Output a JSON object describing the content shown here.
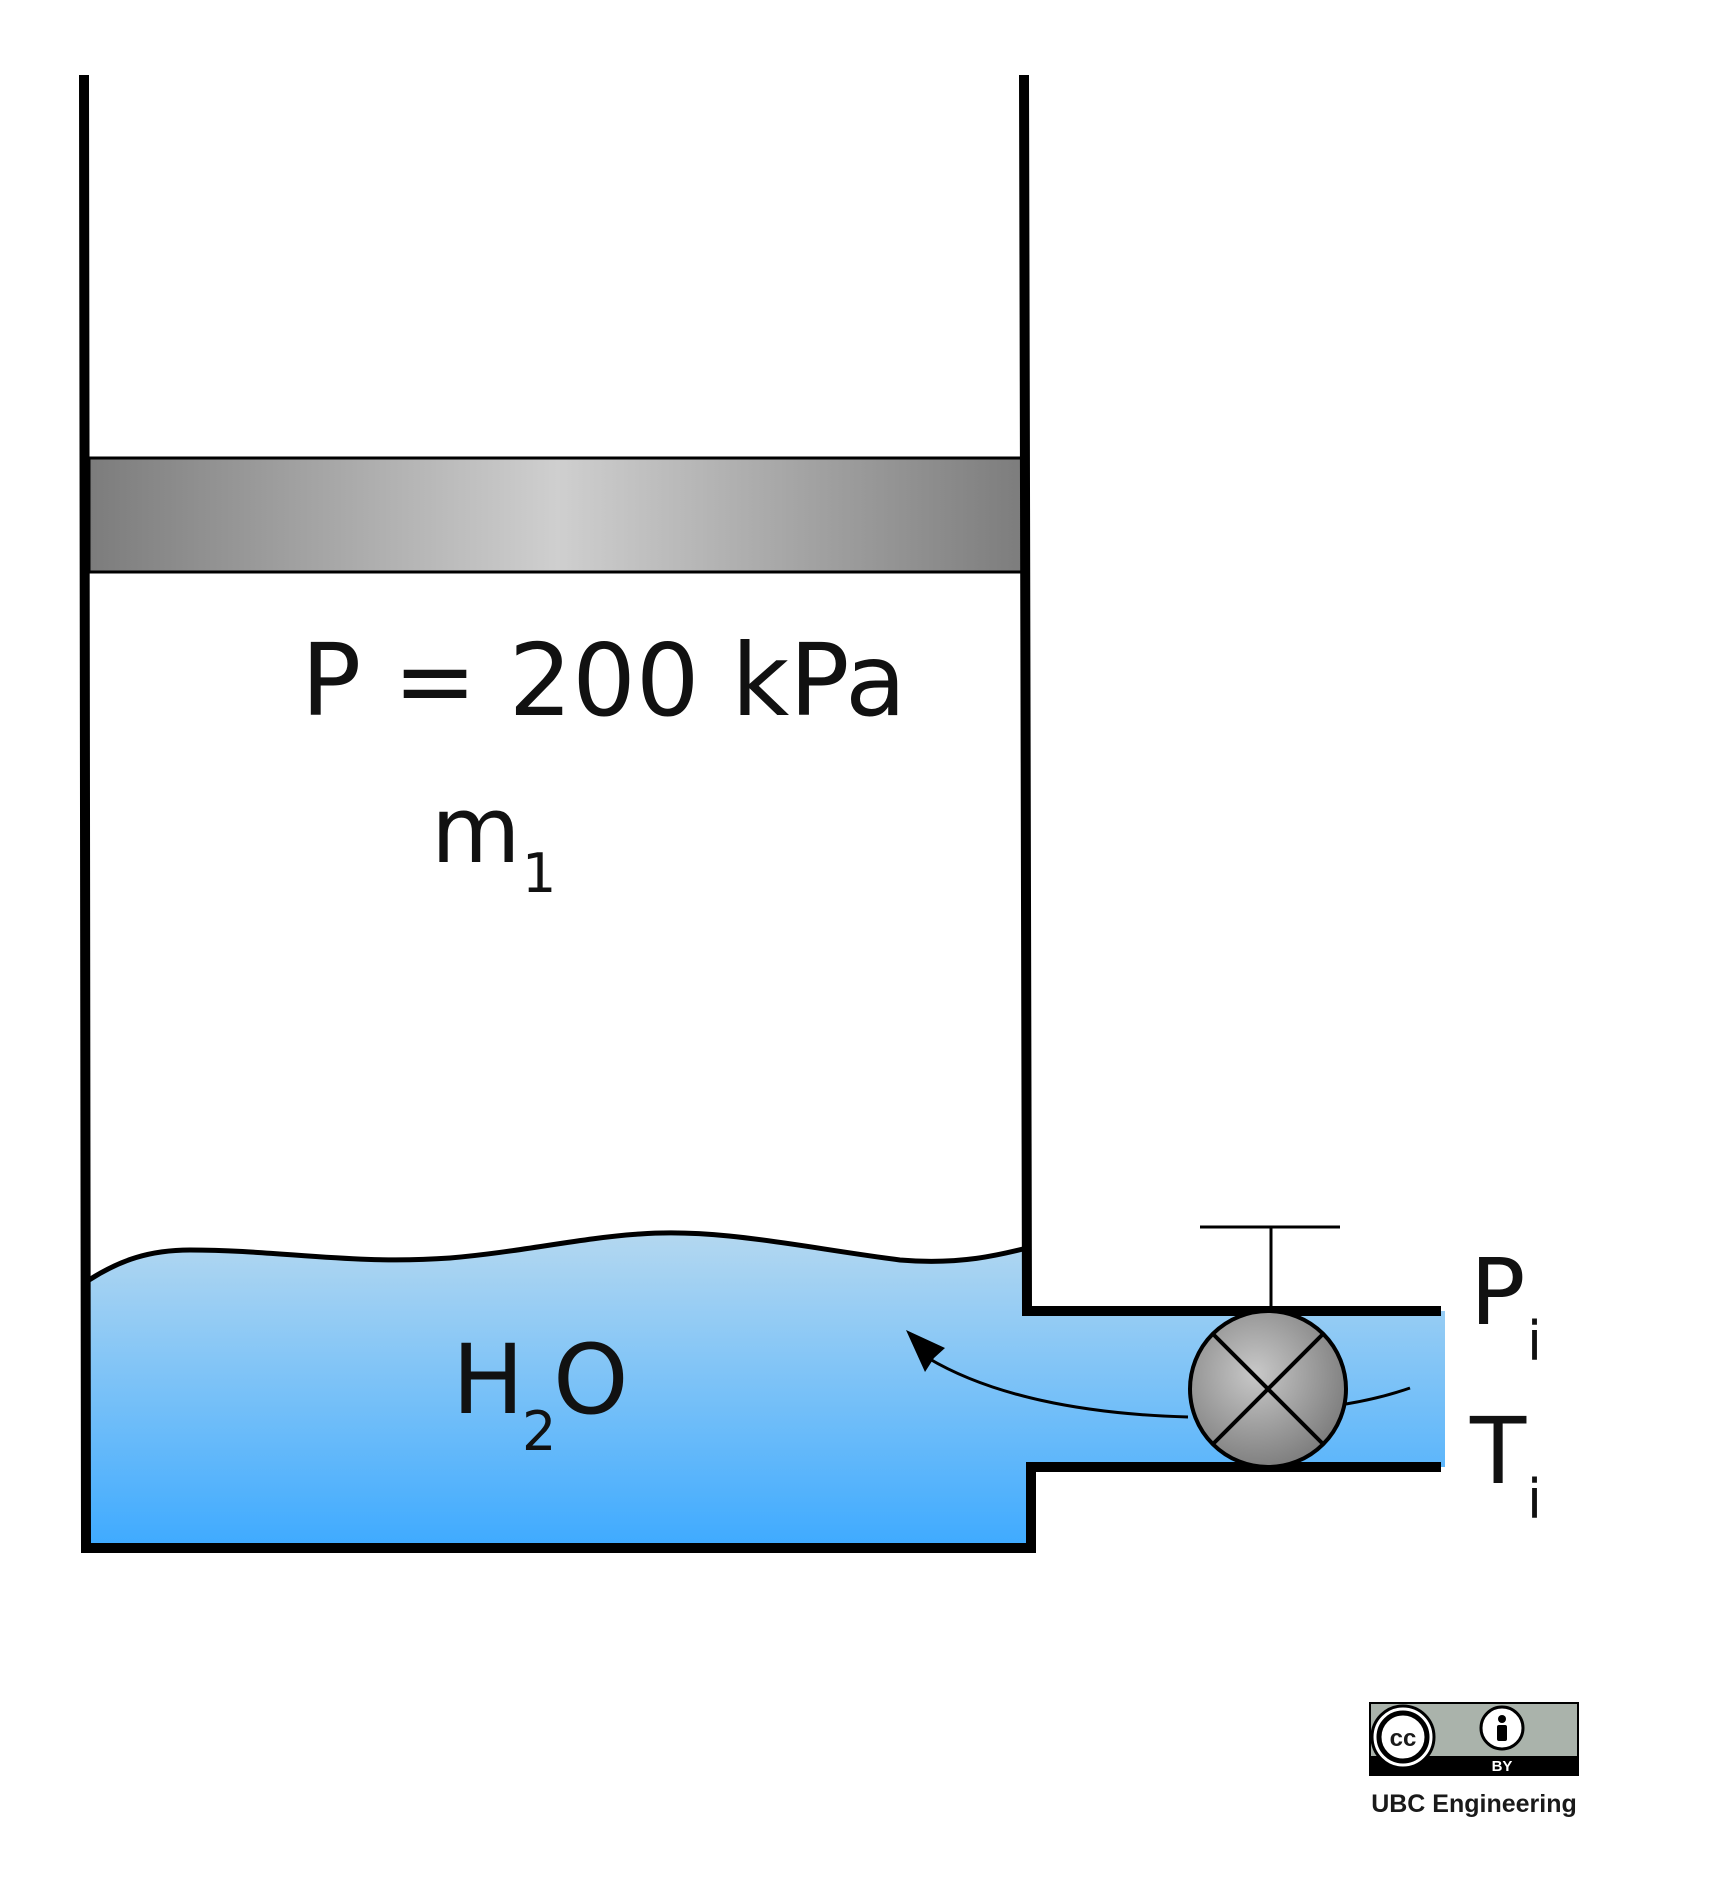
{
  "labels": {
    "pressure": "P = 200 kPa",
    "mass_base": "m",
    "mass_sub": "1",
    "water_base_h": "H",
    "water_sub": "2",
    "water_base_o": "O",
    "inlet_p_base": "P",
    "inlet_p_sub": "i",
    "inlet_t_base": "T",
    "inlet_t_sub": "i"
  },
  "license": {
    "cc_mark": "cc",
    "by_mark": "BY",
    "credit": "UBC Engineering"
  },
  "icons": {
    "valve": "valve-cross-icon",
    "cc": "creative-commons-icon",
    "attribution": "attribution-person-icon"
  },
  "colors": {
    "outline": "#000000",
    "water_top": "#b4d8f0",
    "water_bottom": "#3eaaff",
    "piston_edge": "#7c7c7c",
    "piston_center": "#cfcfcf",
    "valve_fill": "#9a9a9a"
  }
}
